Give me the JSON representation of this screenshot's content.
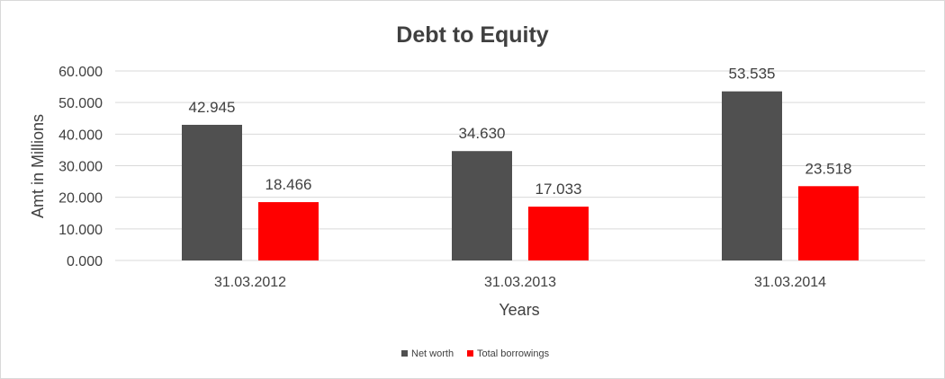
{
  "chart_data": {
    "type": "bar",
    "title": "Debt to Equity",
    "xlabel": "Years",
    "ylabel": "Amt in Millions",
    "categories": [
      "31.03.2012",
      "31.03.2013",
      "31.03.2014"
    ],
    "series": [
      {
        "name": "Net worth",
        "values": [
          42.945,
          34.63,
          53.535
        ],
        "labels": [
          "42.945",
          "34.630",
          "53.535"
        ],
        "color": "#505050"
      },
      {
        "name": "Total borrowings",
        "values": [
          18.466,
          17.033,
          23.518
        ],
        "labels": [
          "18.466",
          "17.033",
          "23.518"
        ],
        "color": "#ff0000"
      }
    ],
    "ylim": [
      0,
      60
    ],
    "yticks": [
      "0.000",
      "10.000",
      "20.000",
      "30.000",
      "40.000",
      "50.000",
      "60.000"
    ],
    "grid": true,
    "legend_position": "bottom"
  }
}
